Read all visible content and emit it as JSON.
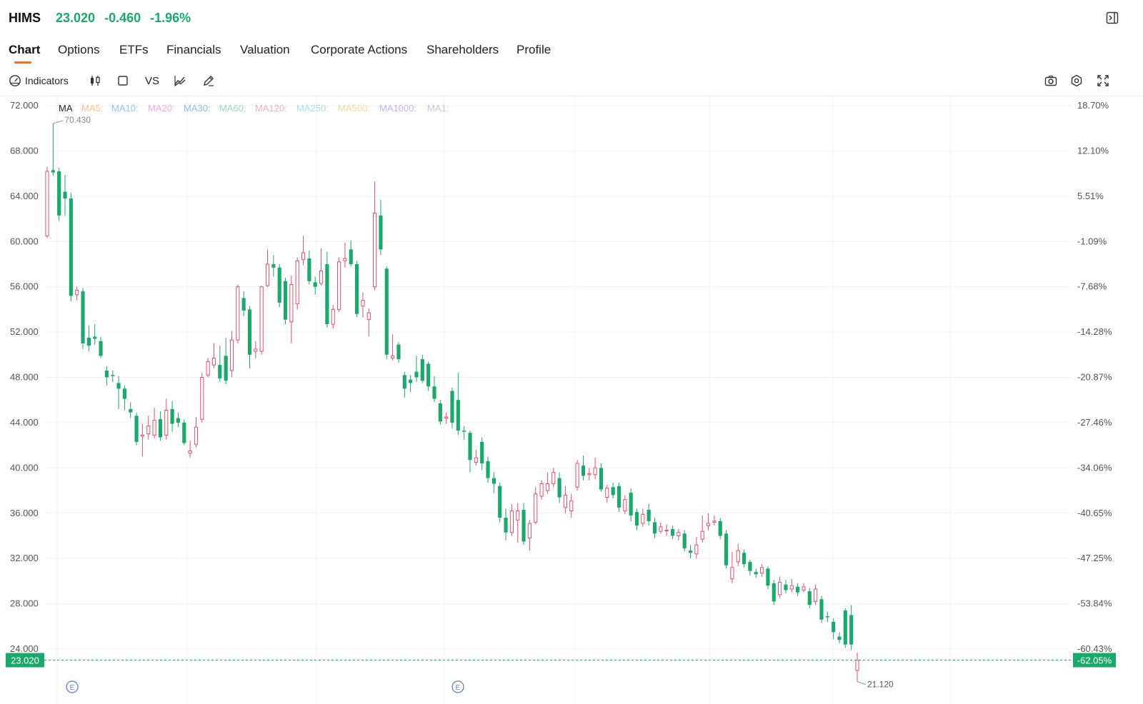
{
  "header": {
    "symbol": "HIMS",
    "price": "23.020",
    "change": "-0.460",
    "change_pct": "-1.96%",
    "quote_color": "#19a96a"
  },
  "tabs": [
    {
      "label": "Chart",
      "active": true
    },
    {
      "label": "Options"
    },
    {
      "label": "ETFs"
    },
    {
      "label": "Financials"
    },
    {
      "label": "Valuation"
    },
    {
      "label": "Corporate Actions"
    },
    {
      "label": "Shareholders"
    },
    {
      "label": "Profile"
    }
  ],
  "toolbar": {
    "indicators_label": "Indicators",
    "vs_label": "VS",
    "left_icons": [
      "indicators-icon",
      "candlestick-icon",
      "square-icon",
      "compare-icon",
      "chart-style-icon",
      "draw-icon"
    ],
    "right_icons": [
      "camera-icon",
      "settings-icon",
      "fullscreen-icon"
    ]
  },
  "ma_legend": {
    "label": "MA",
    "items": [
      {
        "label": "MA5:",
        "color": "#f9c08a"
      },
      {
        "label": "MA10:",
        "color": "#8fc8ee"
      },
      {
        "label": "MA20:",
        "color": "#f3a9d8"
      },
      {
        "label": "MA30:",
        "color": "#8ebdf0"
      },
      {
        "label": "MA60:",
        "color": "#97dcc0"
      },
      {
        "label": "MA120:",
        "color": "#f6b2b6"
      },
      {
        "label": "MA250:",
        "color": "#9ee4f0"
      },
      {
        "label": "MA500:",
        "color": "#f6d89a"
      },
      {
        "label": "MA1000:",
        "color": "#cfb0ee"
      },
      {
        "label": "MA1:",
        "color": "#c8c8c8"
      }
    ]
  },
  "chart_data": {
    "type": "candlestick",
    "y_axis_left": [
      "72.000",
      "68.000",
      "64.000",
      "60.000",
      "56.000",
      "52.000",
      "48.000",
      "44.000",
      "40.000",
      "36.000",
      "32.000",
      "28.000",
      "24.000"
    ],
    "y_axis_right": [
      "18.70%",
      "12.10%",
      "5.51%",
      "-1.09%",
      "-7.68%",
      "-14.28%",
      "-20.87%",
      "-27.46%",
      "-34.06%",
      "-40.65%",
      "-47.25%",
      "-53.84%",
      "-60.43%"
    ],
    "ylim": [
      21.12,
      72.0
    ],
    "current_price_label": "23.020",
    "current_pct_label": "-62.05%",
    "current_price": 23.02,
    "high_label": "70.430",
    "low_label": "21.120",
    "high_value": 70.43,
    "low_value": 21.12,
    "event_marker_label": "E",
    "event_marker_indices": [
      3,
      68
    ],
    "up_color": "#e8506a",
    "down_color": "#19a96a",
    "candles": [
      [
        60.5,
        66.2,
        66.6,
        60.3
      ],
      [
        66.3,
        66.1,
        70.43,
        65.8
      ],
      [
        66.2,
        62.3,
        66.5,
        61.8
      ],
      [
        64.4,
        63.8,
        65.9,
        62.3
      ],
      [
        63.8,
        55.2,
        64.3,
        54.7
      ],
      [
        55.3,
        55.7,
        56.0,
        54.8
      ],
      [
        55.6,
        51.0,
        55.9,
        50.5
      ],
      [
        51.5,
        50.8,
        52.6,
        50.3
      ],
      [
        51.6,
        51.4,
        52.7,
        50.9
      ],
      [
        51.2,
        49.9,
        51.6,
        49.7
      ],
      [
        48.6,
        48.0,
        49.0,
        47.3
      ],
      [
        48.2,
        48.1,
        48.6,
        47.6
      ],
      [
        47.5,
        47.0,
        48.1,
        45.2
      ],
      [
        47.0,
        46.1,
        47.3,
        45.1
      ],
      [
        45.2,
        44.9,
        45.8,
        44.4
      ],
      [
        44.6,
        42.3,
        44.9,
        42.0
      ],
      [
        42.8,
        42.9,
        43.9,
        41.0
      ],
      [
        43.0,
        43.7,
        44.6,
        42.5
      ],
      [
        42.9,
        44.2,
        45.3,
        42.6
      ],
      [
        44.3,
        42.7,
        45.0,
        42.4
      ],
      [
        42.9,
        45.1,
        46.1,
        42.5
      ],
      [
        45.2,
        43.9,
        45.9,
        43.2
      ],
      [
        44.4,
        44.0,
        44.9,
        43.6
      ],
      [
        44.0,
        42.2,
        44.3,
        42.0
      ],
      [
        41.3,
        41.5,
        42.4,
        40.9
      ],
      [
        42.1,
        43.6,
        44.5,
        41.8
      ],
      [
        44.3,
        48.0,
        48.4,
        44.0
      ],
      [
        48.2,
        49.4,
        49.7,
        48.0
      ],
      [
        49.1,
        49.7,
        51.0,
        48.8
      ],
      [
        49.1,
        47.9,
        50.8,
        47.6
      ],
      [
        49.9,
        47.7,
        51.5,
        47.4
      ],
      [
        48.6,
        51.3,
        52.1,
        48.0
      ],
      [
        51.3,
        56.0,
        56.2,
        51.0
      ],
      [
        55.0,
        53.9,
        55.6,
        53.4
      ],
      [
        54.0,
        50.0,
        54.3,
        48.8
      ],
      [
        50.3,
        50.5,
        51.2,
        49.7
      ],
      [
        50.3,
        56.0,
        56.1,
        50.0
      ],
      [
        56.1,
        58.0,
        59.3,
        56.0
      ],
      [
        58.0,
        57.7,
        58.8,
        56.9
      ],
      [
        57.7,
        54.6,
        58.0,
        54.2
      ],
      [
        56.5,
        53.1,
        56.8,
        52.7
      ],
      [
        52.9,
        56.2,
        57.0,
        51.0
      ],
      [
        54.5,
        58.3,
        58.6,
        54.0
      ],
      [
        58.4,
        59.0,
        60.5,
        57.9
      ],
      [
        58.5,
        56.5,
        59.2,
        56.2
      ],
      [
        56.4,
        56.0,
        56.9,
        55.3
      ],
      [
        56.3,
        57.4,
        59.4,
        56.1
      ],
      [
        58.0,
        52.7,
        59.1,
        52.4
      ],
      [
        52.7,
        54.0,
        54.4,
        52.3
      ],
      [
        54.0,
        58.2,
        58.6,
        53.8
      ],
      [
        58.3,
        58.5,
        59.9,
        57.7
      ],
      [
        59.3,
        58.0,
        60.1,
        57.8
      ],
      [
        58.0,
        53.6,
        58.3,
        53.3
      ],
      [
        54.3,
        54.8,
        55.5,
        53.3
      ],
      [
        53.1,
        53.7,
        54.1,
        51.6
      ],
      [
        56.0,
        62.5,
        65.3,
        55.7
      ],
      [
        62.3,
        59.3,
        63.7,
        58.8
      ],
      [
        57.6,
        50.0,
        57.8,
        49.6
      ],
      [
        49.7,
        49.9,
        51.8,
        49.5
      ],
      [
        50.9,
        49.6,
        51.1,
        49.3
      ],
      [
        48.2,
        47.0,
        48.5,
        46.2
      ],
      [
        47.8,
        47.5,
        48.2,
        46.7
      ],
      [
        48.5,
        48.0,
        49.9,
        47.6
      ],
      [
        49.6,
        47.7,
        50.0,
        47.5
      ],
      [
        49.2,
        47.2,
        49.4,
        46.8
      ],
      [
        47.2,
        46.1,
        48.1,
        45.8
      ],
      [
        45.7,
        44.1,
        46.0,
        43.8
      ],
      [
        44.4,
        44.5,
        44.9,
        43.9
      ],
      [
        46.8,
        44.0,
        47.1,
        43.5
      ],
      [
        46.0,
        43.3,
        48.4,
        42.9
      ],
      [
        43.3,
        43.2,
        43.7,
        42.5
      ],
      [
        43.1,
        40.7,
        43.3,
        39.6
      ],
      [
        40.5,
        40.9,
        41.6,
        40.2
      ],
      [
        42.3,
        40.4,
        42.7,
        39.8
      ],
      [
        40.6,
        39.1,
        41.0,
        38.7
      ],
      [
        39.1,
        38.6,
        39.6,
        37.8
      ],
      [
        38.4,
        35.6,
        38.7,
        35.2
      ],
      [
        35.6,
        34.3,
        36.4,
        33.6
      ],
      [
        34.3,
        36.2,
        36.8,
        34.0
      ],
      [
        35.4,
        36.2,
        36.9,
        33.4
      ],
      [
        36.3,
        33.5,
        36.9,
        33.2
      ],
      [
        33.8,
        35.1,
        35.4,
        32.7
      ],
      [
        35.2,
        37.7,
        38.3,
        35.0
      ],
      [
        37.5,
        38.6,
        38.9,
        37.2
      ],
      [
        38.0,
        38.6,
        39.6,
        37.7
      ],
      [
        38.6,
        39.6,
        40.0,
        38.3
      ],
      [
        39.1,
        37.4,
        39.6,
        36.9
      ],
      [
        36.5,
        37.6,
        38.4,
        36.0
      ],
      [
        36.2,
        37.1,
        37.7,
        35.6
      ],
      [
        38.3,
        40.4,
        40.7,
        38.0
      ],
      [
        40.2,
        39.3,
        41.1,
        38.9
      ],
      [
        39.4,
        39.5,
        40.0,
        38.9
      ],
      [
        39.4,
        40.0,
        40.9,
        39.0
      ],
      [
        40.0,
        38.1,
        40.4,
        37.9
      ],
      [
        37.4,
        38.2,
        38.5,
        36.9
      ],
      [
        38.3,
        37.6,
        38.7,
        37.3
      ],
      [
        38.4,
        36.5,
        38.7,
        36.1
      ],
      [
        36.2,
        37.2,
        37.6,
        35.9
      ],
      [
        37.8,
        35.8,
        38.2,
        35.3
      ],
      [
        36.1,
        34.9,
        36.4,
        34.5
      ],
      [
        35.1,
        35.9,
        36.4,
        34.8
      ],
      [
        36.3,
        35.3,
        36.8,
        34.9
      ],
      [
        35.2,
        34.2,
        35.6,
        33.8
      ],
      [
        34.4,
        34.8,
        35.2,
        34.2
      ],
      [
        34.5,
        34.5,
        35.0,
        34.0
      ],
      [
        34.6,
        34.0,
        34.9,
        33.7
      ],
      [
        34.0,
        34.3,
        34.6,
        33.6
      ],
      [
        34.2,
        32.9,
        34.5,
        32.6
      ],
      [
        32.7,
        32.5,
        33.2,
        32.0
      ],
      [
        32.4,
        33.2,
        33.9,
        32.0
      ],
      [
        33.7,
        34.4,
        35.8,
        33.4
      ],
      [
        34.9,
        35.1,
        36.0,
        34.5
      ],
      [
        35.2,
        35.3,
        35.8,
        34.9
      ],
      [
        35.3,
        34.0,
        35.6,
        33.7
      ],
      [
        34.2,
        31.4,
        34.5,
        31.1
      ],
      [
        30.2,
        31.2,
        32.6,
        29.8
      ],
      [
        31.7,
        32.7,
        33.3,
        31.3
      ],
      [
        32.5,
        31.5,
        32.8,
        31.2
      ],
      [
        31.7,
        30.9,
        31.9,
        30.5
      ],
      [
        30.8,
        30.6,
        31.1,
        30.3
      ],
      [
        30.7,
        31.2,
        31.5,
        30.4
      ],
      [
        31.1,
        29.6,
        31.3,
        29.3
      ],
      [
        29.8,
        28.2,
        30.1,
        27.9
      ],
      [
        28.8,
        29.9,
        30.4,
        28.5
      ],
      [
        29.7,
        29.2,
        30.1,
        28.9
      ],
      [
        29.3,
        29.6,
        30.2,
        29.0
      ],
      [
        29.5,
        29.0,
        29.8,
        28.7
      ],
      [
        29.2,
        29.5,
        29.8,
        29.0
      ],
      [
        29.1,
        27.9,
        29.4,
        27.6
      ],
      [
        28.2,
        29.3,
        29.7,
        27.9
      ],
      [
        28.4,
        26.6,
        28.7,
        26.3
      ],
      [
        26.9,
        26.8,
        27.3,
        26.4
      ],
      [
        26.4,
        25.5,
        26.7,
        24.9
      ],
      [
        25.1,
        24.8,
        25.5,
        24.5
      ],
      [
        27.4,
        24.4,
        27.6,
        24.1
      ],
      [
        27.0,
        24.4,
        27.9,
        23.9
      ],
      [
        22.1,
        23.02,
        23.7,
        21.12
      ]
    ]
  }
}
